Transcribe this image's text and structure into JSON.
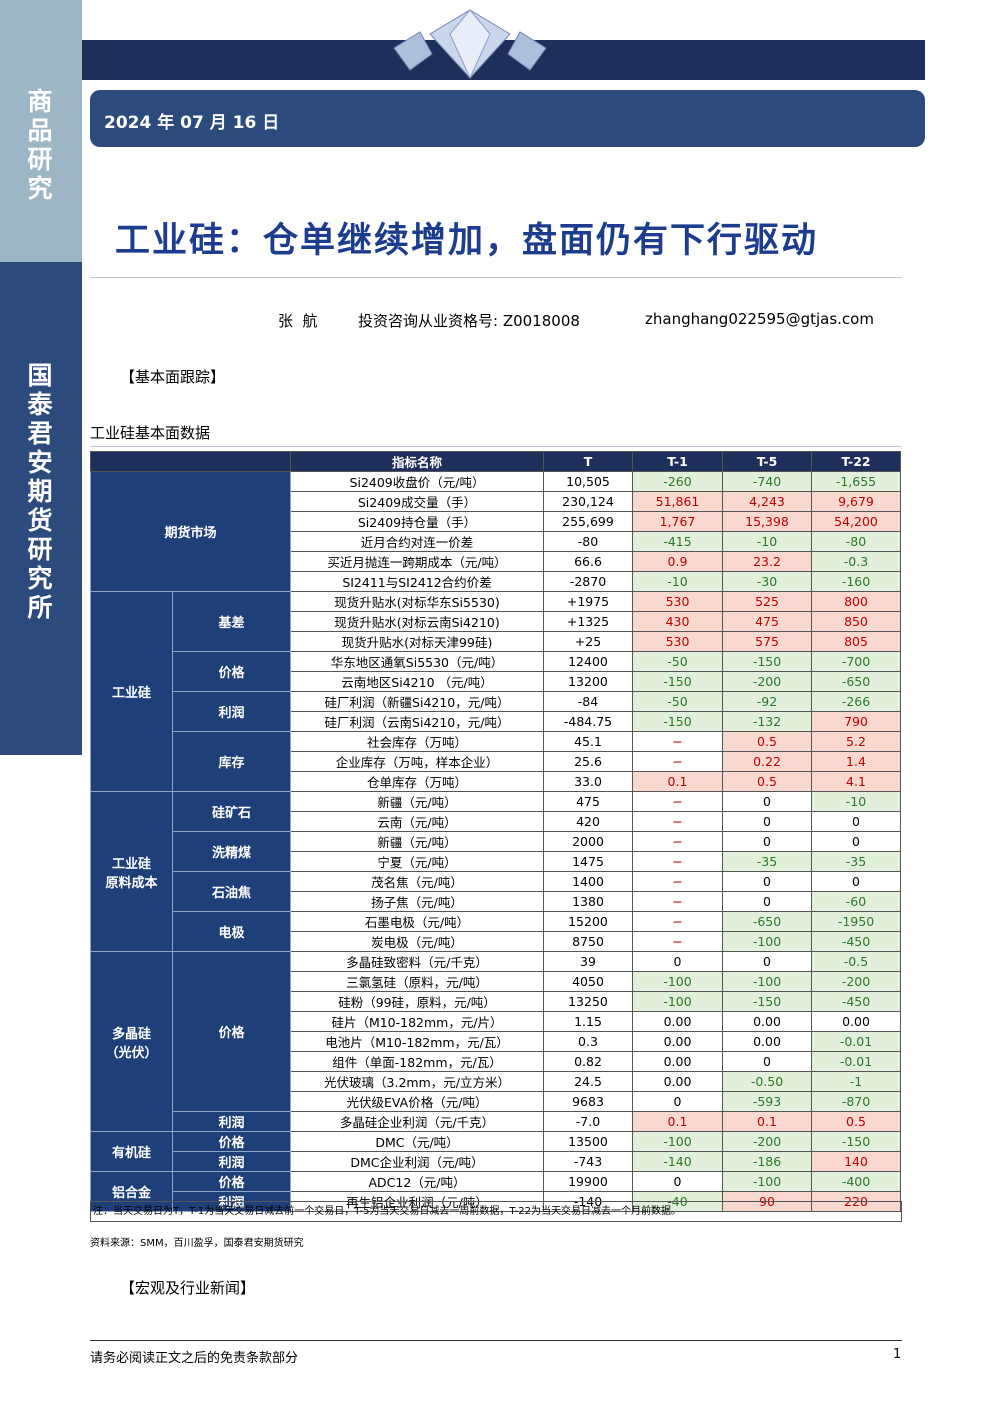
{
  "sidebar": {
    "top": "商品研究",
    "bottom": "国泰君安期货研究所"
  },
  "header": {
    "date": "2024 年 07 月 16 日",
    "title": "工业硅：仓单继续增加，盘面仍有下行驱动",
    "author": "张  航",
    "license": "投资咨询从业资格号: Z0018008",
    "email": "zhanghang022595@gtjas.com"
  },
  "sections": [
    "【基本面跟踪】",
    "【宏观及行业新闻】"
  ],
  "table": {
    "caption": "工业硅基本面数据",
    "columns": [
      "指标名称",
      "T",
      "T-1",
      "T-5",
      "T-22"
    ],
    "groups": [
      {
        "label": [
          "期货市场"
        ],
        "rows": [
          [
            "Si2409收盘价（元/吨）",
            "10,505",
            "-260",
            "-740",
            "-1,655"
          ],
          [
            "Si2409成交量（手）",
            "230,124",
            "51,861",
            "4,243",
            "9,679"
          ],
          [
            "Si2409持仓量（手）",
            "255,699",
            "1,767",
            "15,398",
            "54,200"
          ],
          [
            "近月合约对连一价差",
            "-80",
            "-415",
            "-10",
            "-80"
          ],
          [
            "买近月抛连一跨期成本（元/吨）",
            "66.6",
            "0.9",
            "23.2",
            "-0.3"
          ],
          [
            "SI2411与SI2412合约价差",
            "-2870",
            "-10",
            "-30",
            "-160"
          ]
        ]
      },
      {
        "label": [
          "工业硅"
        ],
        "subgroups": [
          {
            "label": "基差",
            "rows": [
              [
                "现货升贴水(对标华东Si5530)",
                "+1975",
                "530",
                "525",
                "800"
              ],
              [
                "现货升贴水(对标云南Si4210)",
                "+1325",
                "430",
                "475",
                "850"
              ],
              [
                "现货升贴水(对标天津99硅)",
                "+25",
                "530",
                "575",
                "805"
              ]
            ]
          },
          {
            "label": "价格",
            "rows": [
              [
                "华东地区通氧Si5530（元/吨）",
                "12400",
                "-50",
                "-150",
                "-700"
              ],
              [
                "云南地区Si4210 （元/吨）",
                "13200",
                "-150",
                "-200",
                "-650"
              ]
            ]
          },
          {
            "label": "利润",
            "rows": [
              [
                "硅厂利润（新疆Si4210，元/吨）",
                "-84",
                "-50",
                "-92",
                "-266"
              ],
              [
                "硅厂利润（云南Si4210，元/吨）",
                "-484.75",
                "-150",
                "-132",
                "790"
              ]
            ]
          },
          {
            "label": "库存",
            "rows": [
              [
                "社会库存（万吨）",
                "45.1",
                "−",
                "0.5",
                "5.2"
              ],
              [
                "企业库存（万吨，样本企业）",
                "25.6",
                "−",
                "0.22",
                "1.4"
              ],
              [
                "仓单库存（万吨）",
                "33.0",
                "0.1",
                "0.5",
                "4.1"
              ]
            ]
          }
        ]
      },
      {
        "label": [
          "工业硅",
          "原料成本"
        ],
        "subgroups": [
          {
            "label": "硅矿石",
            "rows": [
              [
                "新疆（元/吨）",
                "475",
                "−",
                "0",
                "-10"
              ],
              [
                "云南（元/吨）",
                "420",
                "−",
                "0",
                "0"
              ]
            ]
          },
          {
            "label": "洗精煤",
            "rows": [
              [
                "新疆（元/吨）",
                "2000",
                "−",
                "0",
                "0"
              ],
              [
                "宁夏（元/吨）",
                "1475",
                "−",
                "-35",
                "-35"
              ]
            ]
          },
          {
            "label": "石油焦",
            "rows": [
              [
                "茂名焦（元/吨）",
                "1400",
                "−",
                "0",
                "0"
              ],
              [
                "扬子焦（元/吨）",
                "1380",
                "−",
                "0",
                "-60"
              ]
            ]
          },
          {
            "label": "电极",
            "rows": [
              [
                "石墨电极（元/吨）",
                "15200",
                "−",
                "-650",
                "-1950"
              ],
              [
                "炭电极（元/吨）",
                "8750",
                "−",
                "-100",
                "-450"
              ]
            ]
          }
        ]
      },
      {
        "label": [
          "多晶硅",
          "（光伏）"
        ],
        "subgroups": [
          {
            "label": "价格",
            "rows": [
              [
                "多晶硅致密料（元/千克）",
                "39",
                "0",
                "0",
                "-0.5"
              ],
              [
                "三氯氢硅（原料，元/吨）",
                "4050",
                "-100",
                "-100",
                "-200"
              ],
              [
                "硅粉（99硅，原料，元/吨）",
                "13250",
                "-100",
                "-150",
                "-450"
              ],
              [
                "硅片（M10-182mm，元/片）",
                "1.15",
                "0.00",
                "0.00",
                "0.00"
              ],
              [
                "电池片（M10-182mm，元/瓦）",
                "0.3",
                "0.00",
                "0.00",
                "-0.01"
              ],
              [
                "组件（单面-182mm，元/瓦）",
                "0.82",
                "0.00",
                "0",
                "-0.01"
              ],
              [
                "光伏玻璃（3.2mm，元/立方米）",
                "24.5",
                "0.00",
                "-0.50",
                "-1"
              ],
              [
                "光伏级EVA价格（元/吨）",
                "9683",
                "0",
                "-593",
                "-870"
              ]
            ]
          },
          {
            "label": "利润",
            "rows": [
              [
                "多晶硅企业利润（元/千克）",
                "-7.0",
                "0.1",
                "0.1",
                "0.5"
              ]
            ]
          }
        ]
      },
      {
        "label": [
          "有机硅"
        ],
        "subgroups": [
          {
            "label": "价格",
            "rows": [
              [
                "DMC（元/吨）",
                "13500",
                "-100",
                "-200",
                "-150"
              ]
            ]
          },
          {
            "label": "利润",
            "rows": [
              [
                "DMC企业利润（元/吨）",
                "-743",
                "-140",
                "-186",
                "140"
              ]
            ]
          }
        ]
      },
      {
        "label": [
          "铝合金"
        ],
        "subgroups": [
          {
            "label": "价格",
            "rows": [
              [
                "ADC12（元/吨）",
                "19900",
                "0",
                "-100",
                "-400"
              ]
            ]
          },
          {
            "label": "利润",
            "rows": [
              [
                "再生铝企业利润（元/吨）",
                "-140",
                "-40",
                "90",
                "220"
              ]
            ]
          }
        ]
      }
    ],
    "note": "注：当天交易日为T，T-1为当天交易日减去前一个交易日，T-5为当天交易日减去一周前数据，T-22为当天交易日减去一个月前数据。",
    "source": "资料来源：SMM，百川盈孚，国泰君安期货研究"
  },
  "footer": {
    "disclaimer": "请务必阅读正文之后的免责条款部分",
    "page": "1"
  }
}
